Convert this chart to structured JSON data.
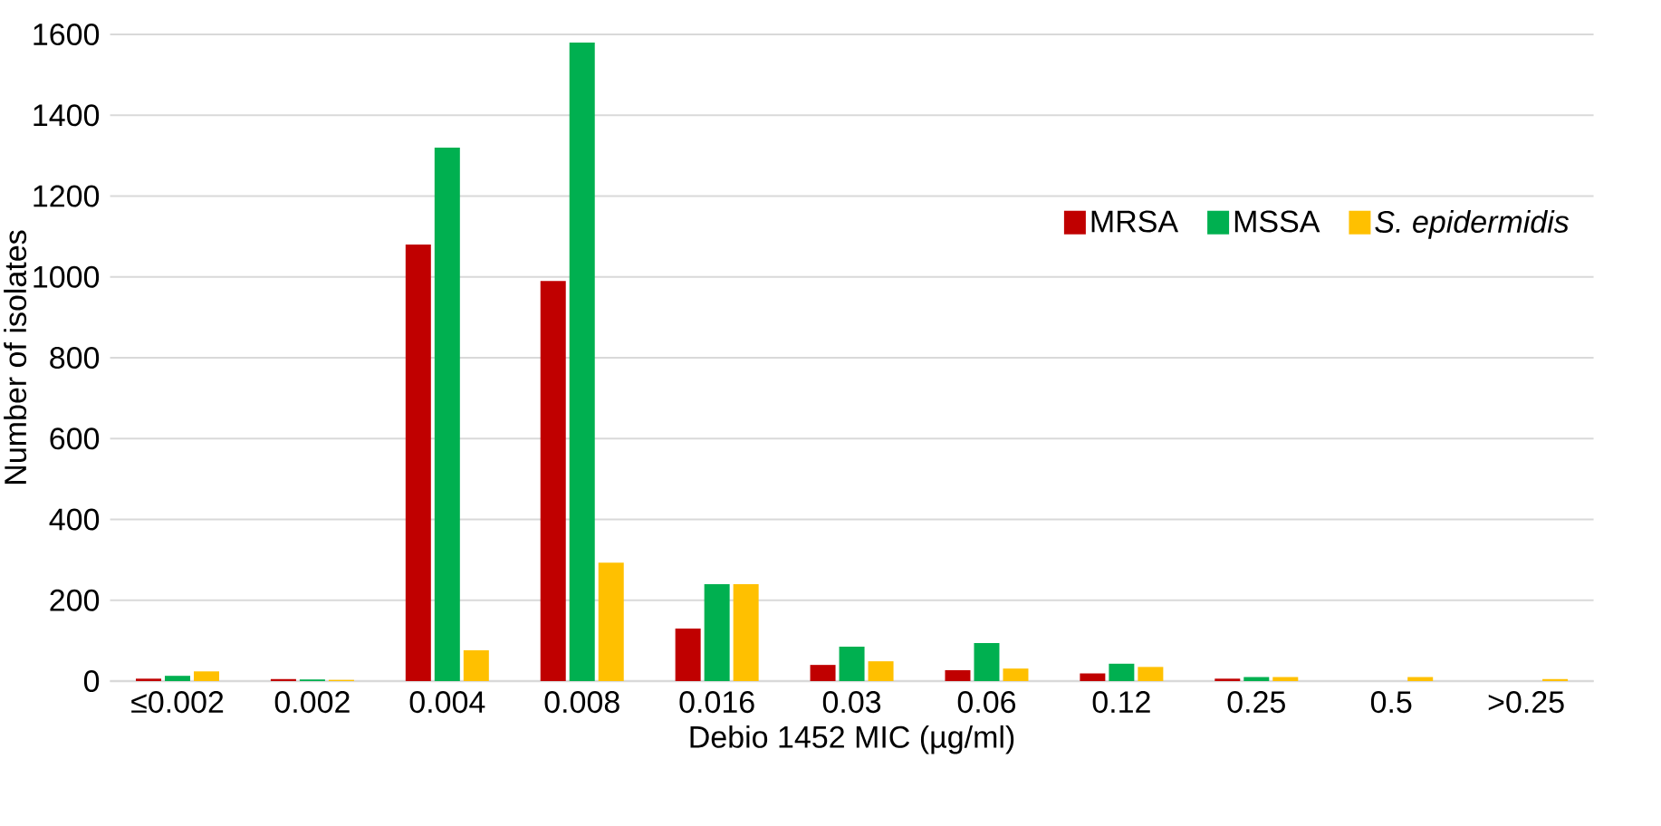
{
  "chart_data": {
    "type": "bar",
    "xlabel": "Debio 1452 MIC (µg/ml)",
    "ylabel": "Number of isolates",
    "categories": [
      "≤0.002",
      "0.002",
      "0.004",
      "0.008",
      "0.016",
      "0.03",
      "0.06",
      "0.12",
      "0.25",
      "0.5",
      ">0.25"
    ],
    "series": [
      {
        "name": "MRSA",
        "color": "#c00000",
        "values": [
          6,
          5,
          1080,
          990,
          130,
          40,
          27,
          19,
          6,
          0,
          0
        ]
      },
      {
        "name": "MSSA",
        "color": "#00b050",
        "values": [
          13,
          4,
          1320,
          1580,
          240,
          85,
          94,
          43,
          10,
          0,
          0
        ]
      },
      {
        "name": "*S. epidermidis*",
        "color": "#ffc000",
        "values": [
          24,
          3,
          76,
          293,
          240,
          49,
          31,
          35,
          10,
          10,
          5
        ]
      }
    ],
    "ylim": [
      0,
      1600
    ],
    "yticks": [
      0,
      200,
      400,
      600,
      800,
      1000,
      1200,
      1400,
      1600
    ],
    "grid": "y",
    "legend": "top right"
  }
}
